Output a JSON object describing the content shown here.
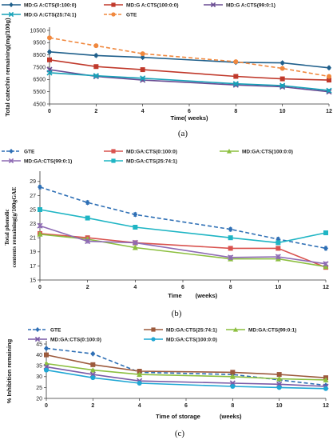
{
  "chart_data": [
    {
      "type": "line",
      "panel_label": "(a)",
      "xlabel": "Time( weeks)",
      "ylabel": "Total catechin remaining(mg/100g)",
      "xlim": [
        0,
        12
      ],
      "ylim": [
        4500,
        10500
      ],
      "xticks": [
        0,
        2,
        4,
        6,
        8,
        10,
        12
      ],
      "yticks": [
        4500,
        5500,
        6500,
        7500,
        8500,
        9500,
        10500
      ],
      "ytick_labels": [
        "4500",
        "5500",
        "6500",
        "7500",
        "8500",
        "9500",
        "10500"
      ],
      "grid": false,
      "legend_position": "top",
      "series": [
        {
          "name": "MD:G A:CTS(0:100:0)",
          "color": "#1f5f8b",
          "marker": "diamond",
          "dashed": false,
          "x": [
            0,
            2,
            4,
            8,
            10,
            12
          ],
          "y": [
            8750,
            8450,
            8300,
            7900,
            7850,
            7450
          ]
        },
        {
          "name": "MD:G A:CTS(100:0:0)",
          "color": "#c0392b",
          "marker": "square",
          "dashed": false,
          "x": [
            0,
            2,
            4,
            8,
            10,
            12
          ],
          "y": [
            8100,
            7550,
            7300,
            6750,
            6550,
            6450
          ]
        },
        {
          "name": "MD:G A:CTS(99:0:1)",
          "color": "#6a4c93",
          "marker": "x",
          "dashed": false,
          "x": [
            0,
            2,
            4,
            8,
            10,
            12
          ],
          "y": [
            7300,
            6750,
            6450,
            6050,
            5900,
            5500
          ]
        },
        {
          "name": "MD:G A:CTS(25:74:1)",
          "color": "#17a2b8",
          "marker": "x",
          "dashed": false,
          "x": [
            0,
            2,
            4,
            8,
            10,
            12
          ],
          "y": [
            7050,
            6800,
            6600,
            6150,
            6000,
            5600
          ]
        },
        {
          "name": "GTE",
          "color": "#f0883e",
          "marker": "circle",
          "dashed": true,
          "x": [
            0,
            2,
            4,
            8,
            10,
            12
          ],
          "y": [
            9900,
            9250,
            8600,
            7950,
            7400,
            6750
          ]
        }
      ]
    },
    {
      "type": "line",
      "panel_label": "(b)",
      "xlabel": "Time",
      "xlabel_suffix": "(weeks)",
      "ylabel": "Total phenolic contents remaining(g/100gGAE",
      "xlim": [
        0,
        12
      ],
      "ylim": [
        15,
        30
      ],
      "xticks": [
        0,
        2,
        4,
        6,
        8,
        10,
        12
      ],
      "yticks": [
        15,
        17,
        19,
        21,
        23,
        25,
        27,
        29
      ],
      "grid": false,
      "legend_position": "top",
      "series": [
        {
          "name": "GTE",
          "color": "#2e6fb5",
          "marker": "diamond",
          "dashed": true,
          "x": [
            0,
            2,
            4,
            8,
            10,
            12
          ],
          "y": [
            28.2,
            26.0,
            24.3,
            22.2,
            20.8,
            19.5
          ]
        },
        {
          "name": "MD:GA:CTS(0:100:0)",
          "color": "#d9534f",
          "marker": "square",
          "dashed": false,
          "x": [
            0,
            2,
            4,
            8,
            10,
            12
          ],
          "y": [
            21.6,
            21.0,
            20.3,
            19.5,
            19.5,
            16.8
          ]
        },
        {
          "name": "MD:GA:CTS(100:0:0)",
          "color": "#8cbf3f",
          "marker": "triangle",
          "dashed": false,
          "x": [
            0,
            2,
            4,
            8,
            10,
            12
          ],
          "y": [
            21.5,
            20.8,
            19.6,
            18.0,
            18.0,
            16.9
          ]
        },
        {
          "name": "MD:GA:CTS(99:0:1)",
          "color": "#8e6bb4",
          "marker": "x",
          "dashed": false,
          "x": [
            0,
            2,
            4,
            8,
            10,
            12
          ],
          "y": [
            22.7,
            20.5,
            20.3,
            18.2,
            18.3,
            17.3
          ]
        },
        {
          "name": "MD:GA:CTS(25:74:1)",
          "color": "#1fb5c4",
          "marker": "square",
          "dashed": false,
          "x": [
            0,
            2,
            4,
            8,
            10,
            12
          ],
          "y": [
            25.0,
            23.8,
            22.5,
            21.0,
            20.3,
            21.7
          ]
        }
      ]
    },
    {
      "type": "line",
      "panel_label": "(c)",
      "xlabel": "Time of storage",
      "xlabel_suffix": "(weeks)",
      "ylabel": "% Inhibition remaining",
      "xlim": [
        0,
        12
      ],
      "ylim": [
        20,
        45
      ],
      "xticks": [
        0,
        2,
        4,
        6,
        8,
        10,
        12
      ],
      "yticks": [
        20,
        25,
        30,
        35,
        40,
        45
      ],
      "grid": false,
      "legend_position": "top",
      "series": [
        {
          "name": "GTE",
          "color": "#2e6fb5",
          "marker": "diamond",
          "dashed": true,
          "x": [
            0,
            2,
            4,
            8,
            10,
            12
          ],
          "y": [
            43.0,
            40.5,
            32.0,
            31.0,
            28.5,
            26.0
          ]
        },
        {
          "name": "MD:GA:CTS(25:74:1)",
          "color": "#9c5a3c",
          "marker": "square",
          "dashed": false,
          "x": [
            0,
            2,
            4,
            8,
            10,
            12
          ],
          "y": [
            40.0,
            35.5,
            32.5,
            32.0,
            31.0,
            29.5
          ]
        },
        {
          "name": "MD:GA:CTS(99:0:1)",
          "color": "#8cbf3f",
          "marker": "triangle",
          "dashed": false,
          "x": [
            0,
            2,
            4,
            8,
            10,
            12
          ],
          "y": [
            36.0,
            33.0,
            31.0,
            30.0,
            29.0,
            28.5
          ]
        },
        {
          "name": "MD:GA:CTS(0:100:0)",
          "color": "#7a5aa6",
          "marker": "x",
          "dashed": false,
          "x": [
            0,
            2,
            4,
            8,
            10,
            12
          ],
          "y": [
            34.5,
            31.0,
            28.0,
            27.0,
            26.5,
            25.5
          ]
        },
        {
          "name": "MD:GA:CTS(100:0:0)",
          "color": "#1fa7d4",
          "marker": "circle",
          "dashed": false,
          "x": [
            0,
            2,
            4,
            8,
            10,
            12
          ],
          "y": [
            33.0,
            29.5,
            27.0,
            25.5,
            25.0,
            24.5
          ]
        }
      ]
    }
  ]
}
